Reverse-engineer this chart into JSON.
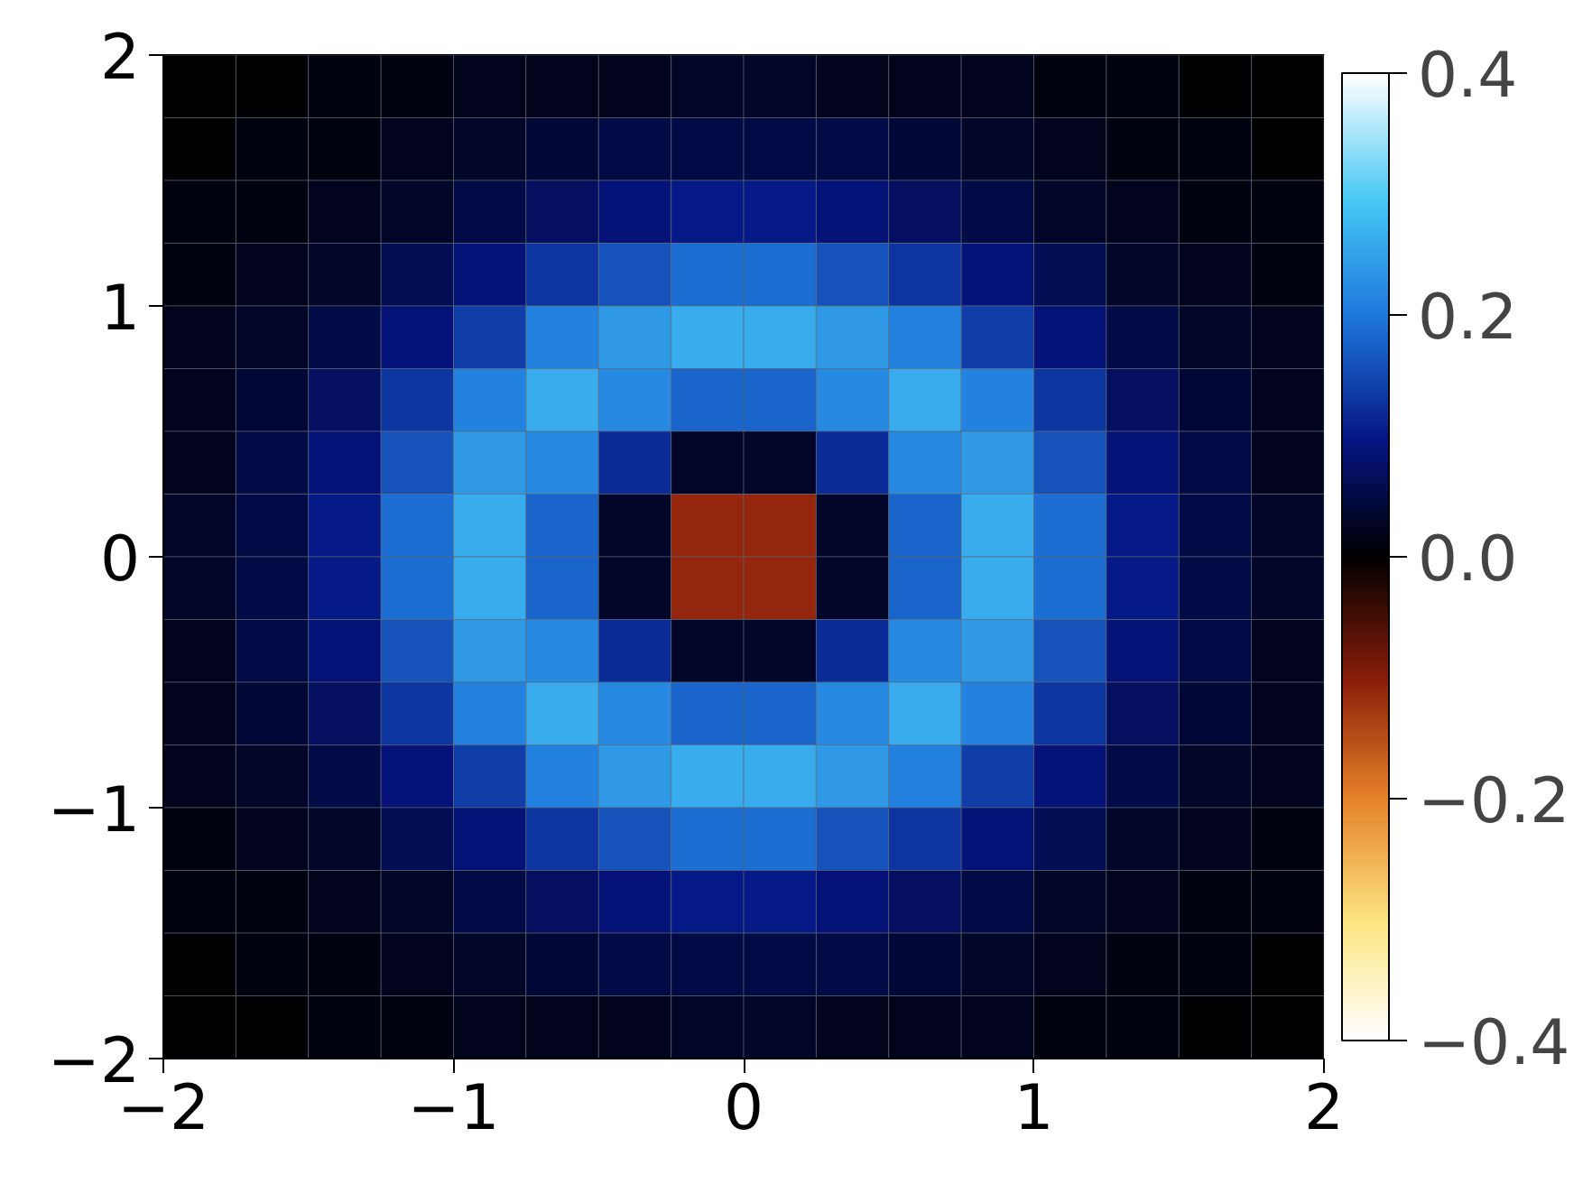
{
  "chart_data": {
    "type": "heatmap",
    "x": [
      -1.875,
      -1.625,
      -1.375,
      -1.125,
      -0.875,
      -0.625,
      -0.375,
      -0.125,
      0.125,
      0.375,
      0.625,
      0.875,
      1.125,
      1.375,
      1.625,
      1.875
    ],
    "y": [
      1.875,
      1.625,
      1.375,
      1.125,
      0.875,
      0.625,
      0.375,
      0.125,
      -0.125,
      -0.375,
      -0.625,
      -0.875,
      -1.125,
      -1.375,
      -1.625,
      -1.875
    ],
    "cells": [
      [
        0,
        0,
        0.01,
        0.01,
        0.02,
        0.02,
        0.02,
        0.03,
        0.03,
        0.02,
        0.02,
        0.02,
        0.01,
        0.01,
        0,
        0
      ],
      [
        0,
        0.01,
        0.01,
        0.02,
        0.03,
        0.04,
        0.05,
        0.05,
        0.05,
        0.05,
        0.04,
        0.03,
        0.02,
        0.01,
        0.01,
        0
      ],
      [
        0.01,
        0.01,
        0.02,
        0.03,
        0.05,
        0.07,
        0.09,
        0.1,
        0.1,
        0.09,
        0.07,
        0.05,
        0.03,
        0.02,
        0.01,
        0.01
      ],
      [
        0.01,
        0.02,
        0.03,
        0.06,
        0.09,
        0.13,
        0.16,
        0.19,
        0.19,
        0.16,
        0.13,
        0.09,
        0.06,
        0.03,
        0.02,
        0.01
      ],
      [
        0.02,
        0.03,
        0.05,
        0.09,
        0.14,
        0.21,
        0.24,
        0.26,
        0.26,
        0.24,
        0.21,
        0.14,
        0.09,
        0.05,
        0.03,
        0.02
      ],
      [
        0.02,
        0.04,
        0.07,
        0.13,
        0.21,
        0.26,
        0.22,
        0.18,
        0.18,
        0.22,
        0.26,
        0.21,
        0.13,
        0.07,
        0.04,
        0.02
      ],
      [
        0.02,
        0.05,
        0.09,
        0.16,
        0.24,
        0.22,
        0.12,
        0.03,
        0.03,
        0.12,
        0.22,
        0.24,
        0.16,
        0.09,
        0.05,
        0.02
      ],
      [
        0.03,
        0.05,
        0.1,
        0.19,
        0.26,
        0.18,
        0.03,
        -0.11,
        -0.11,
        0.03,
        0.18,
        0.26,
        0.19,
        0.1,
        0.05,
        0.03
      ],
      [
        0.03,
        0.05,
        0.1,
        0.19,
        0.26,
        0.18,
        0.03,
        -0.11,
        -0.11,
        0.03,
        0.18,
        0.26,
        0.19,
        0.1,
        0.05,
        0.03
      ],
      [
        0.02,
        0.05,
        0.09,
        0.16,
        0.24,
        0.22,
        0.12,
        0.03,
        0.03,
        0.12,
        0.22,
        0.24,
        0.16,
        0.09,
        0.05,
        0.02
      ],
      [
        0.02,
        0.04,
        0.07,
        0.13,
        0.21,
        0.26,
        0.22,
        0.18,
        0.18,
        0.22,
        0.26,
        0.21,
        0.13,
        0.07,
        0.04,
        0.02
      ],
      [
        0.02,
        0.03,
        0.05,
        0.09,
        0.14,
        0.21,
        0.24,
        0.26,
        0.26,
        0.24,
        0.21,
        0.14,
        0.09,
        0.05,
        0.03,
        0.02
      ],
      [
        0.01,
        0.02,
        0.03,
        0.06,
        0.09,
        0.13,
        0.16,
        0.19,
        0.19,
        0.16,
        0.13,
        0.09,
        0.06,
        0.03,
        0.02,
        0.01
      ],
      [
        0.01,
        0.01,
        0.02,
        0.03,
        0.05,
        0.07,
        0.09,
        0.1,
        0.1,
        0.09,
        0.07,
        0.05,
        0.03,
        0.02,
        0.01,
        0.01
      ],
      [
        0,
        0.01,
        0.01,
        0.02,
        0.03,
        0.04,
        0.05,
        0.05,
        0.05,
        0.05,
        0.04,
        0.03,
        0.02,
        0.01,
        0.01,
        0
      ],
      [
        0,
        0,
        0.01,
        0.01,
        0.02,
        0.02,
        0.02,
        0.03,
        0.03,
        0.02,
        0.02,
        0.02,
        0.01,
        0.01,
        0,
        0
      ]
    ],
    "xlim": [
      -2,
      2
    ],
    "ylim": [
      -2,
      2
    ],
    "xticks": [
      {
        "value": -2,
        "label": "−2"
      },
      {
        "value": -1,
        "label": "−1"
      },
      0,
      1,
      2
    ],
    "yticks": [
      {
        "value": -2,
        "label": "−2"
      },
      {
        "value": -1,
        "label": "−1"
      },
      0,
      1,
      2
    ],
    "clim": [
      -0.4,
      0.4
    ],
    "cticks": [
      {
        "value": -0.4,
        "label": "−0.4"
      },
      {
        "value": -0.2,
        "label": "−0.2"
      },
      {
        "value": 0,
        "label": "0.0"
      },
      0.2,
      0.4
    ]
  }
}
